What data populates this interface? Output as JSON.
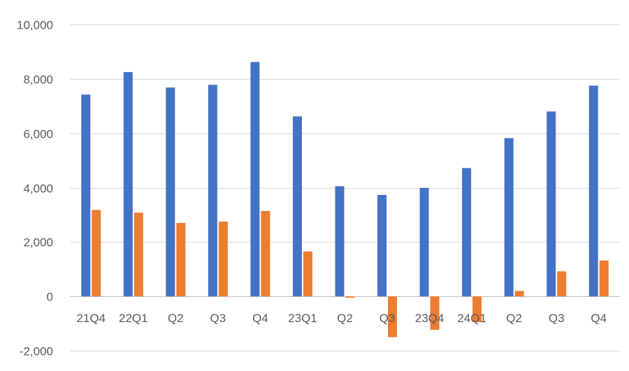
{
  "chart_data": {
    "type": "bar",
    "title": "",
    "xlabel": "",
    "ylabel": "",
    "categories": [
      "21Q4",
      "22Q1",
      "Q2",
      "Q3",
      "Q4",
      "23Q1",
      "Q2",
      "Q3",
      "23Q4",
      "24Q1",
      "Q2",
      "Q3",
      "Q4"
    ],
    "series": [
      {
        "color": "#4472C4",
        "values": [
          7420,
          8250,
          7680,
          7780,
          8620,
          6620,
          4050,
          3730,
          3990,
          4720,
          5820,
          6800,
          7750
        ]
      },
      {
        "color": "#ED7D31",
        "values": [
          3180,
          3080,
          2700,
          2750,
          3140,
          1650,
          -50,
          -1500,
          -1230,
          -950,
          200,
          920,
          1320
        ]
      }
    ],
    "ylim": [
      -2000,
      10000
    ],
    "yticks": [
      -2000,
      0,
      2000,
      4000,
      6000,
      8000,
      10000
    ],
    "ytick_labels": [
      "-2,000",
      "0",
      "2,000",
      "4,000",
      "6,000",
      "8,000",
      "10,000"
    ],
    "grid": true,
    "legend": "none"
  }
}
